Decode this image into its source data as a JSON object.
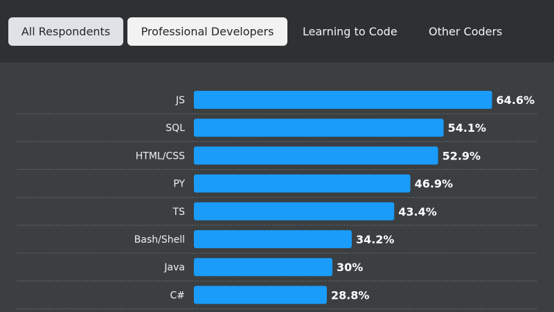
{
  "tabs": [
    {
      "label": "All Respondents",
      "state": "selected"
    },
    {
      "label": "Professional Developers",
      "state": "highlighted"
    },
    {
      "label": "Learning to Code",
      "state": "normal"
    },
    {
      "label": "Other Coders",
      "state": "normal"
    }
  ],
  "colors": {
    "bar": "#1a9cfb",
    "background": "#3b3f42",
    "header": "#2e3134"
  },
  "chart_data": {
    "type": "bar",
    "orientation": "horizontal",
    "categories": [
      "JS",
      "SQL",
      "HTML/CSS",
      "PY",
      "TS",
      "Bash/Shell",
      "Java",
      "C#"
    ],
    "values": [
      64.6,
      54.1,
      52.9,
      46.9,
      43.4,
      34.2,
      30,
      28.8
    ],
    "value_labels": [
      "64.6%",
      "54.1%",
      "52.9%",
      "46.9%",
      "43.4%",
      "34.2%",
      "30%",
      "28.8%"
    ],
    "unit": "%",
    "xlim": [
      0,
      100
    ],
    "grid": false,
    "row_separators": "dashed"
  }
}
